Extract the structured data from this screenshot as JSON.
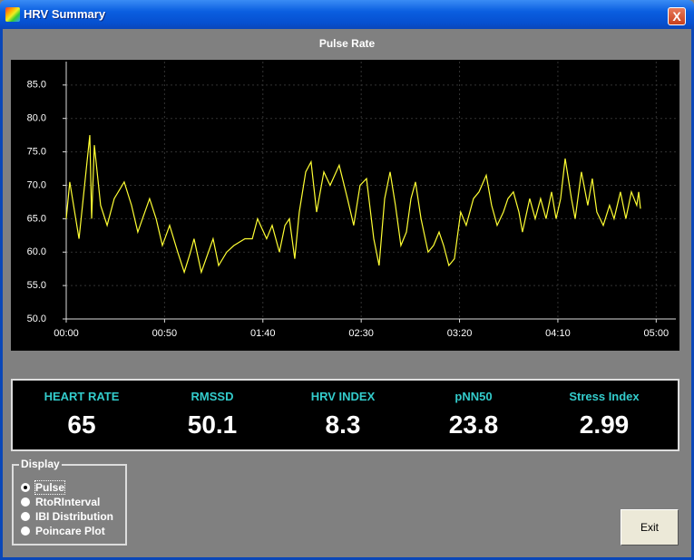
{
  "window": {
    "title": "HRV Summary",
    "close": "X"
  },
  "chart_data": {
    "type": "line",
    "title": "Pulse Rate",
    "color": "#ffff33",
    "grid": true,
    "xlim": [
      0,
      310
    ],
    "ylim": [
      50,
      88.5
    ],
    "xticks": [
      {
        "value": 0,
        "label": "00:00"
      },
      {
        "value": 50,
        "label": "00:50"
      },
      {
        "value": 100,
        "label": "01:40"
      },
      {
        "value": 150,
        "label": "02:30"
      },
      {
        "value": 200,
        "label": "03:20"
      },
      {
        "value": 250,
        "label": "04:10"
      },
      {
        "value": 300,
        "label": "05:00"
      }
    ],
    "yticks": [
      {
        "value": 50,
        "label": "50.0"
      },
      {
        "value": 55,
        "label": "55.0"
      },
      {
        "value": 60,
        "label": "60.0"
      },
      {
        "value": 65,
        "label": "65.0"
      },
      {
        "value": 70,
        "label": "70.0"
      },
      {
        "value": 75,
        "label": "75.0"
      },
      {
        "value": 80,
        "label": "80.0"
      },
      {
        "value": 85,
        "label": "85.0"
      }
    ],
    "x": [
      0,
      1.8,
      6.5,
      12,
      12.9,
      14.3,
      17.5,
      20.8,
      24.4,
      29.5,
      33.2,
      36.4,
      42.4,
      45.7,
      48.9,
      52.6,
      56.7,
      60,
      63.2,
      65,
      68.7,
      74.7,
      77.5,
      81.6,
      85.3,
      90.9,
      94.6,
      97.3,
      101.9,
      104.7,
      108.4,
      111.2,
      113.5,
      116.2,
      118.5,
      121.8,
      124.5,
      127.3,
      131,
      134.2,
      138.8,
      143,
      146.2,
      149.4,
      152.7,
      156.4,
      159.1,
      161.9,
      164.7,
      167.4,
      170.2,
      173,
      175.3,
      177.6,
      180.4,
      184,
      186.8,
      189.6,
      191.9,
      194.6,
      197.4,
      200.6,
      203.4,
      207.1,
      209.9,
      213.6,
      216.3,
      219.1,
      222.3,
      224.6,
      227.4,
      230.2,
      232,
      235.7,
      238.5,
      241.2,
      244,
      246.8,
      249.1,
      251.4,
      253.7,
      256.9,
      258.8,
      262,
      265.2,
      267.5,
      269.8,
      273.1,
      276.3,
      278.6,
      281.8,
      284.6,
      287.4,
      290.1,
      291.1,
      292
    ],
    "values": [
      65,
      70.5,
      62,
      77.5,
      65,
      76,
      67,
      64,
      68,
      70.5,
      67,
      63,
      68,
      65,
      61,
      64,
      60,
      57,
      60,
      62,
      57,
      62,
      58,
      60,
      61,
      62,
      62,
      65,
      62,
      64,
      60,
      64,
      65,
      59,
      66,
      72,
      73.5,
      66,
      72,
      70,
      73,
      68,
      64,
      70,
      71,
      62,
      58,
      68,
      72,
      67,
      61,
      63,
      68,
      70.5,
      65,
      60,
      61,
      63,
      61,
      58,
      59,
      66,
      64,
      68,
      69,
      71.5,
      67,
      64,
      66,
      68,
      69,
      66,
      63,
      68,
      65,
      68,
      65,
      69,
      65,
      68,
      74,
      68,
      65,
      72,
      67,
      71,
      66,
      64,
      67,
      65,
      69,
      65,
      69,
      67,
      69,
      66.5
    ]
  },
  "stats": [
    {
      "label": "HEART RATE",
      "value": 65
    },
    {
      "label": "RMSSD",
      "value": 50.1
    },
    {
      "label": "HRV INDEX",
      "value": 8.3
    },
    {
      "label": "pNN50",
      "value": 23.8
    },
    {
      "label": "Stress Index",
      "value": 2.99
    }
  ],
  "display": {
    "title": "Display",
    "options": [
      "Pulse",
      "RtoRInterval",
      "IBI Distribution",
      "Poincare Plot"
    ],
    "selected": 0
  },
  "exit_button": "Exit"
}
